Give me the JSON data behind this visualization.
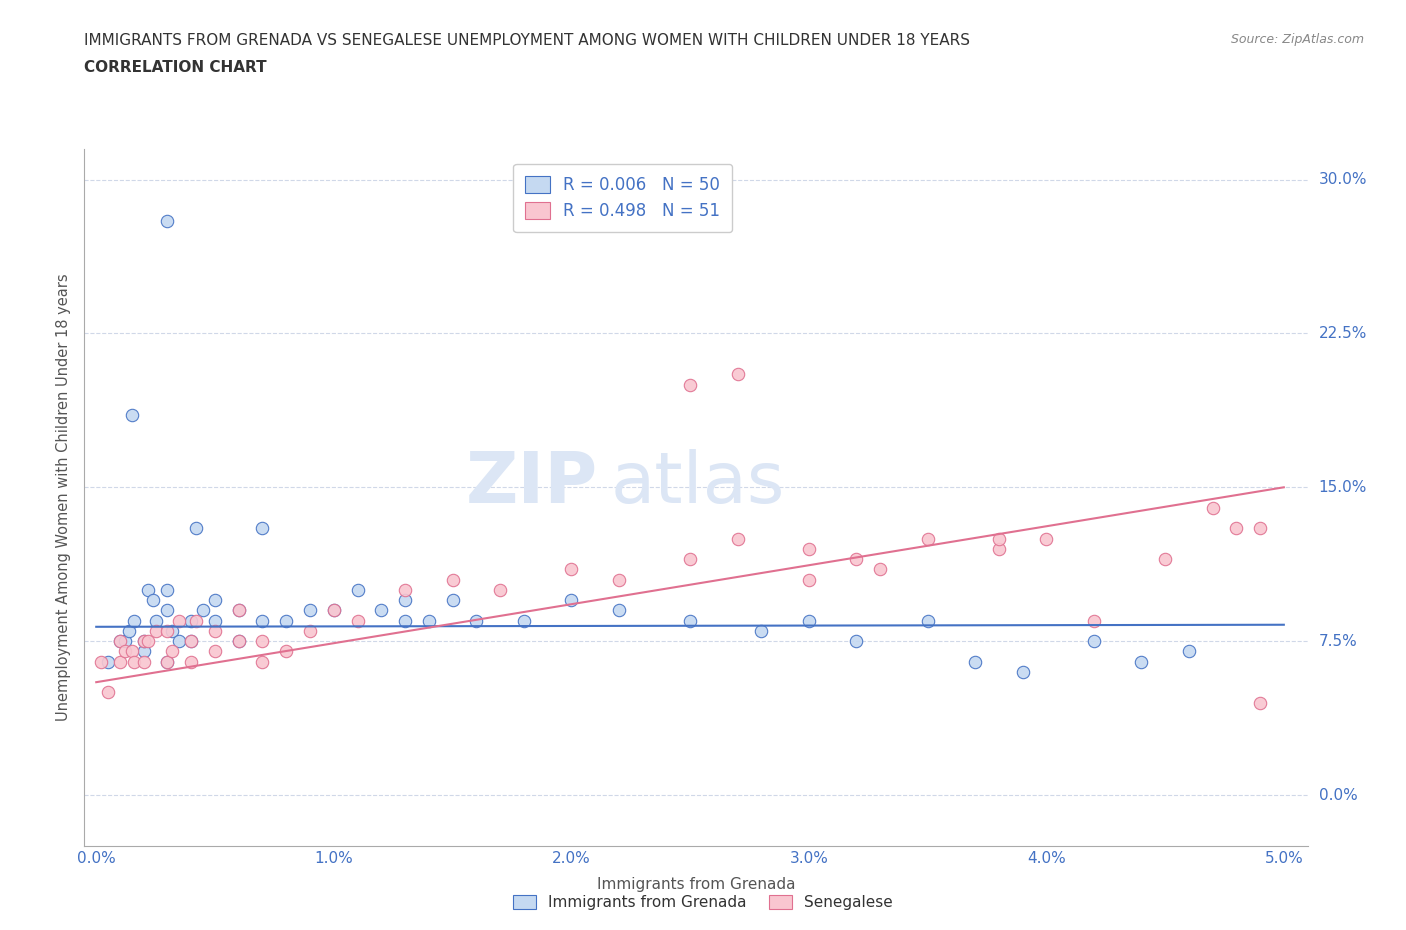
{
  "title_line1": "IMMIGRANTS FROM GRENADA VS SENEGALESE UNEMPLOYMENT AMONG WOMEN WITH CHILDREN UNDER 18 YEARS",
  "title_line2": "CORRELATION CHART",
  "source_text": "Source: ZipAtlas.com",
  "xlabel": "Immigrants from Grenada",
  "ylabel": "Unemployment Among Women with Children Under 18 years",
  "xlim": [
    -0.0005,
    0.051
  ],
  "ylim": [
    -0.025,
    0.315
  ],
  "xticks": [
    0.0,
    0.01,
    0.02,
    0.03,
    0.04,
    0.05
  ],
  "xticklabels": [
    "0.0%",
    "1.0%",
    "2.0%",
    "3.0%",
    "4.0%",
    "5.0%"
  ],
  "yticks": [
    0.0,
    0.075,
    0.15,
    0.225,
    0.3
  ],
  "yticklabels": [
    "0.0%",
    "7.5%",
    "15.0%",
    "22.5%",
    "30.0%"
  ],
  "blue_fill": "#c5d9f1",
  "pink_fill": "#f9c6d0",
  "blue_edge": "#4472c4",
  "pink_edge": "#e07090",
  "blue_line": "#4472c4",
  "pink_line": "#e07090",
  "title_color": "#333333",
  "tick_color": "#4472c4",
  "legend_text_color": "#4472c4",
  "background_color": "#ffffff",
  "watermark_color": "#e8eef8",
  "R_blue": 0.006,
  "N_blue": 50,
  "R_pink": 0.498,
  "N_pink": 51,
  "blue_x": [
    0.0005,
    0.001,
    0.0012,
    0.0014,
    0.0016,
    0.002,
    0.002,
    0.0022,
    0.0024,
    0.0025,
    0.003,
    0.003,
    0.003,
    0.0032,
    0.0035,
    0.004,
    0.004,
    0.0042,
    0.0045,
    0.005,
    0.005,
    0.006,
    0.006,
    0.007,
    0.007,
    0.008,
    0.009,
    0.01,
    0.011,
    0.012,
    0.013,
    0.013,
    0.014,
    0.015,
    0.016,
    0.018,
    0.02,
    0.022,
    0.025,
    0.028,
    0.03,
    0.032,
    0.035,
    0.037,
    0.039,
    0.042,
    0.044,
    0.046,
    0.003,
    0.0015
  ],
  "blue_y": [
    0.065,
    0.075,
    0.075,
    0.08,
    0.085,
    0.07,
    0.075,
    0.1,
    0.095,
    0.085,
    0.065,
    0.1,
    0.09,
    0.08,
    0.075,
    0.075,
    0.085,
    0.13,
    0.09,
    0.095,
    0.085,
    0.075,
    0.09,
    0.13,
    0.085,
    0.085,
    0.09,
    0.09,
    0.1,
    0.09,
    0.085,
    0.095,
    0.085,
    0.095,
    0.085,
    0.085,
    0.095,
    0.09,
    0.085,
    0.08,
    0.085,
    0.075,
    0.085,
    0.065,
    0.06,
    0.075,
    0.065,
    0.07,
    0.28,
    0.185
  ],
  "pink_x": [
    0.0002,
    0.0005,
    0.001,
    0.001,
    0.0012,
    0.0015,
    0.0016,
    0.002,
    0.002,
    0.0022,
    0.0025,
    0.003,
    0.003,
    0.0032,
    0.0035,
    0.004,
    0.004,
    0.0042,
    0.005,
    0.005,
    0.006,
    0.006,
    0.007,
    0.007,
    0.008,
    0.009,
    0.01,
    0.011,
    0.013,
    0.015,
    0.017,
    0.02,
    0.022,
    0.025,
    0.027,
    0.03,
    0.032,
    0.035,
    0.038,
    0.04,
    0.042,
    0.045,
    0.047,
    0.049,
    0.027,
    0.033,
    0.025,
    0.03,
    0.038,
    0.048,
    0.049
  ],
  "pink_y": [
    0.065,
    0.05,
    0.075,
    0.065,
    0.07,
    0.07,
    0.065,
    0.075,
    0.065,
    0.075,
    0.08,
    0.065,
    0.08,
    0.07,
    0.085,
    0.075,
    0.065,
    0.085,
    0.08,
    0.07,
    0.09,
    0.075,
    0.065,
    0.075,
    0.07,
    0.08,
    0.09,
    0.085,
    0.1,
    0.105,
    0.1,
    0.11,
    0.105,
    0.115,
    0.125,
    0.105,
    0.115,
    0.125,
    0.12,
    0.125,
    0.085,
    0.115,
    0.14,
    0.13,
    0.205,
    0.11,
    0.2,
    0.12,
    0.125,
    0.13,
    0.045
  ],
  "blue_trend_x": [
    0.0,
    0.05
  ],
  "blue_trend_y": [
    0.082,
    0.083
  ],
  "pink_trend_x": [
    0.0,
    0.05
  ],
  "pink_trend_y": [
    0.055,
    0.15
  ]
}
